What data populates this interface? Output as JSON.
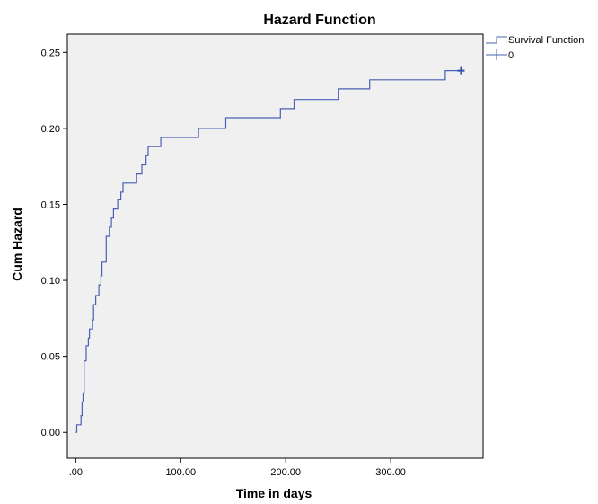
{
  "chart_data": {
    "type": "line",
    "title": "Hazard Function",
    "xlabel": "Time in days",
    "ylabel": "Cum Hazard",
    "xlim": [
      -8,
      388
    ],
    "ylim": [
      -0.017,
      0.262
    ],
    "xticks": [
      0,
      100,
      200,
      300
    ],
    "xtick_labels": [
      ".00",
      "100.00",
      "200.00",
      "300.00"
    ],
    "yticks": [
      0.0,
      0.05,
      0.1,
      0.15,
      0.2,
      0.25
    ],
    "ytick_labels": [
      "0.00",
      "0.05",
      "0.10",
      "0.15",
      "0.20",
      "0.25"
    ],
    "grid": false,
    "legend_position": "top-right outside",
    "legend": [
      {
        "label": "Survival Function",
        "marker": "step"
      },
      {
        "label": "0",
        "marker": "cross"
      }
    ],
    "colors": {
      "line": "#4a5fb5",
      "plot_bg": "#f0f0f0",
      "censor": "#2f4fa8"
    },
    "series": [
      {
        "name": "Survival Function",
        "step": true,
        "points": [
          [
            0,
            0.0
          ],
          [
            1,
            0.005
          ],
          [
            5,
            0.011
          ],
          [
            6,
            0.02
          ],
          [
            7,
            0.026
          ],
          [
            8,
            0.047
          ],
          [
            10,
            0.057
          ],
          [
            12,
            0.062
          ],
          [
            13,
            0.068
          ],
          [
            16,
            0.074
          ],
          [
            17,
            0.084
          ],
          [
            19,
            0.09
          ],
          [
            22,
            0.097
          ],
          [
            24,
            0.103
          ],
          [
            25,
            0.112
          ],
          [
            29,
            0.129
          ],
          [
            32,
            0.135
          ],
          [
            34,
            0.141
          ],
          [
            36,
            0.147
          ],
          [
            40,
            0.153
          ],
          [
            43,
            0.158
          ],
          [
            45,
            0.164
          ],
          [
            58,
            0.17
          ],
          [
            63,
            0.176
          ],
          [
            67,
            0.182
          ],
          [
            69,
            0.188
          ],
          [
            81,
            0.194
          ],
          [
            117,
            0.2
          ],
          [
            143,
            0.207
          ],
          [
            195,
            0.213
          ],
          [
            208,
            0.219
          ],
          [
            250,
            0.226
          ],
          [
            280,
            0.232
          ],
          [
            352,
            0.238
          ],
          [
            367,
            0.238
          ]
        ]
      }
    ],
    "censored": [
      [
        367,
        0.238
      ]
    ]
  }
}
